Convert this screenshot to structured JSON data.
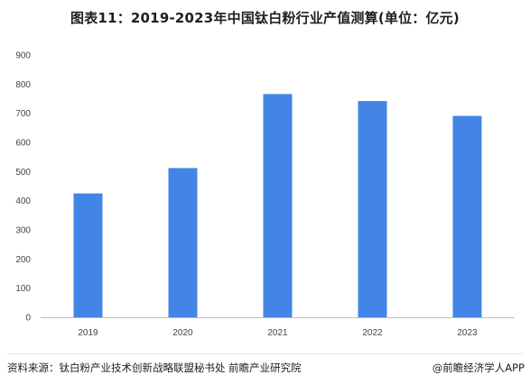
{
  "chart_data": {
    "type": "bar",
    "title": "图表11：2019-2023年中国钛白粉行业产值测算(单位：亿元)",
    "categories": [
      "2019",
      "2020",
      "2021",
      "2022",
      "2023"
    ],
    "values": [
      425,
      512,
      766,
      742,
      691
    ],
    "ylim": [
      0,
      900
    ],
    "yticks": [
      0,
      100,
      200,
      300,
      400,
      500,
      600,
      700,
      800,
      900
    ],
    "xlabel": "",
    "ylabel": "",
    "grid": false,
    "bar_color": "#4285e6"
  },
  "footer": {
    "source": "资料来源：钛白粉产业技术创新战略联盟秘书处 前瞻产业研究院",
    "brand": "@前瞻经济学人APP"
  }
}
